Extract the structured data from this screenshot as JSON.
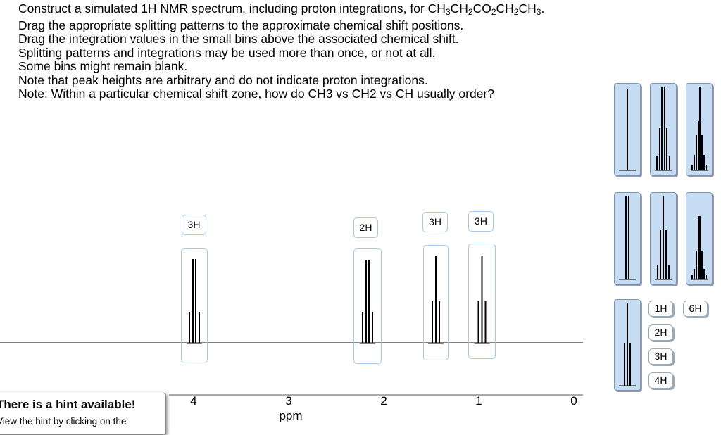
{
  "instructions": {
    "formula_line": [
      "Construct a simulated 1H NMR spectrum, including proton integrations, for CH",
      "3",
      "CH",
      "2",
      "CO",
      "2",
      "CH",
      "2",
      "CH",
      "3",
      "."
    ],
    "lines": [
      "Drag the appropriate splitting patterns to the approximate chemical shift positions.",
      "Drag the integration values in the small bins above the associated chemical shift.",
      "Splitting patterns and integrations may be used more than once, or not at all.",
      "Some bins might remain blank.",
      "Note that peak heights are arbitrary and do not indicate proton integrations.",
      "Note:  Within a particular chemical shift zone, how do CH3 vs CH2 vs CH usually order?"
    ]
  },
  "spectrum": {
    "placed_integrations": [
      "3H",
      "2H",
      "3H",
      "3H"
    ],
    "axis_ticks": [
      4,
      3,
      2,
      1,
      0
    ],
    "axis_label": "ppm"
  },
  "palette": {
    "integrations": [
      "1H",
      "6H",
      "2H",
      "3H",
      "4H"
    ]
  },
  "hint": {
    "title": "There is a hint available!",
    "text": "View the hint by clicking on the"
  }
}
